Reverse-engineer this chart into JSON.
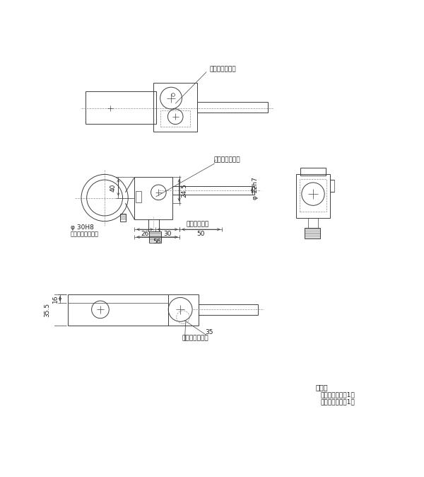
{
  "bg_color": "#ffffff",
  "lc": "#404040",
  "dc": "#909090",
  "tc": "#202020",
  "label_bubble": "丸型気泡管用穴",
  "label_phi30": "φ 30H8",
  "label_clamp": "鏡筒クランプねじ",
  "label_rough": "粗動ハンドル",
  "label_phi12": "φ 12h7",
  "dim_40": "40",
  "dim_26": "26",
  "dim_30": "30",
  "dim_56": "56",
  "dim_50": "50",
  "dim_245": "24.5",
  "dim_16": "16",
  "dim_355": "35.5",
  "dim_35": "35",
  "acc_title": "付属品",
  "acc1": "丸型気泡管　　1個",
  "acc2": "両面テープ　　1個"
}
